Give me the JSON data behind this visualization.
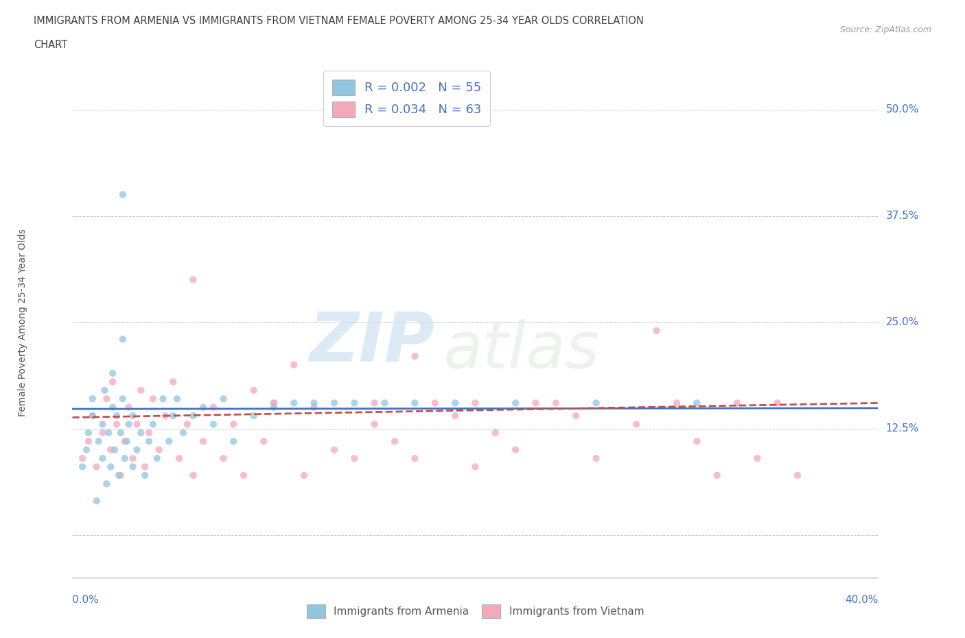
{
  "title_line1": "IMMIGRANTS FROM ARMENIA VS IMMIGRANTS FROM VIETNAM FEMALE POVERTY AMONG 25-34 YEAR OLDS CORRELATION",
  "title_line2": "CHART",
  "source": "Source: ZipAtlas.com",
  "ylabel": "Female Poverty Among 25-34 Year Olds",
  "xlim": [
    0.0,
    0.4
  ],
  "ylim": [
    -0.05,
    0.55
  ],
  "yticks": [
    0.0,
    0.125,
    0.25,
    0.375,
    0.5
  ],
  "ytick_labels": [
    "",
    "12.5%",
    "25.0%",
    "37.5%",
    "50.0%"
  ],
  "xtick_labels": [
    "0.0%",
    "40.0%"
  ],
  "armenia_R": 0.002,
  "armenia_N": 55,
  "vietnam_R": 0.034,
  "vietnam_N": 63,
  "armenia_color": "#92C5DE",
  "vietnam_color": "#F4A9BB",
  "armenia_line_color": "#4472C4",
  "vietnam_line_color": "#C0504D",
  "legend_label_armenia": "Immigrants from Armenia",
  "legend_label_vietnam": "Immigrants from Vietnam",
  "watermark_zip": "ZIP",
  "watermark_atlas": "atlas",
  "background_color": "#ffffff",
  "grid_color": "#c8c8c8",
  "title_color": "#404040",
  "axis_label_color": "#555555",
  "tick_label_color": "#4472C4",
  "armenia_x": [
    0.005,
    0.007,
    0.008,
    0.01,
    0.01,
    0.012,
    0.013,
    0.015,
    0.015,
    0.016,
    0.017,
    0.018,
    0.019,
    0.02,
    0.02,
    0.021,
    0.022,
    0.023,
    0.024,
    0.025,
    0.025,
    0.026,
    0.027,
    0.028,
    0.03,
    0.03,
    0.032,
    0.034,
    0.036,
    0.038,
    0.04,
    0.042,
    0.045,
    0.048,
    0.05,
    0.052,
    0.055,
    0.06,
    0.065,
    0.07,
    0.075,
    0.08,
    0.09,
    0.1,
    0.11,
    0.12,
    0.13,
    0.14,
    0.155,
    0.17,
    0.19,
    0.22,
    0.26,
    0.31,
    0.025
  ],
  "armenia_y": [
    0.08,
    0.1,
    0.12,
    0.14,
    0.16,
    0.04,
    0.11,
    0.09,
    0.13,
    0.17,
    0.06,
    0.12,
    0.08,
    0.15,
    0.19,
    0.1,
    0.14,
    0.07,
    0.12,
    0.16,
    0.23,
    0.09,
    0.11,
    0.13,
    0.08,
    0.14,
    0.1,
    0.12,
    0.07,
    0.11,
    0.13,
    0.09,
    0.16,
    0.11,
    0.14,
    0.16,
    0.12,
    0.14,
    0.15,
    0.13,
    0.16,
    0.11,
    0.14,
    0.15,
    0.155,
    0.155,
    0.155,
    0.155,
    0.155,
    0.155,
    0.155,
    0.155,
    0.155,
    0.155,
    0.4
  ],
  "vietnam_x": [
    0.005,
    0.008,
    0.01,
    0.012,
    0.015,
    0.017,
    0.019,
    0.02,
    0.022,
    0.024,
    0.026,
    0.028,
    0.03,
    0.032,
    0.034,
    0.036,
    0.038,
    0.04,
    0.043,
    0.046,
    0.05,
    0.053,
    0.057,
    0.06,
    0.065,
    0.07,
    0.075,
    0.08,
    0.085,
    0.09,
    0.095,
    0.1,
    0.11,
    0.115,
    0.12,
    0.13,
    0.14,
    0.15,
    0.16,
    0.17,
    0.18,
    0.19,
    0.2,
    0.21,
    0.22,
    0.23,
    0.25,
    0.26,
    0.28,
    0.3,
    0.31,
    0.32,
    0.33,
    0.34,
    0.35,
    0.36,
    0.29,
    0.24,
    0.2,
    0.15,
    0.1,
    0.06,
    0.17
  ],
  "vietnam_y": [
    0.09,
    0.11,
    0.14,
    0.08,
    0.12,
    0.16,
    0.1,
    0.18,
    0.13,
    0.07,
    0.11,
    0.15,
    0.09,
    0.13,
    0.17,
    0.08,
    0.12,
    0.16,
    0.1,
    0.14,
    0.18,
    0.09,
    0.13,
    0.07,
    0.11,
    0.15,
    0.09,
    0.13,
    0.07,
    0.17,
    0.11,
    0.155,
    0.2,
    0.07,
    0.15,
    0.1,
    0.09,
    0.13,
    0.11,
    0.09,
    0.155,
    0.14,
    0.08,
    0.12,
    0.1,
    0.155,
    0.14,
    0.09,
    0.13,
    0.155,
    0.11,
    0.07,
    0.155,
    0.09,
    0.155,
    0.07,
    0.24,
    0.155,
    0.155,
    0.155,
    0.155,
    0.3,
    0.21
  ],
  "armenia_trend_x": [
    0.0,
    0.4
  ],
  "armenia_trend_y": [
    0.148,
    0.149
  ],
  "vietnam_trend_x": [
    0.0,
    0.4
  ],
  "vietnam_trend_y": [
    0.138,
    0.155
  ]
}
